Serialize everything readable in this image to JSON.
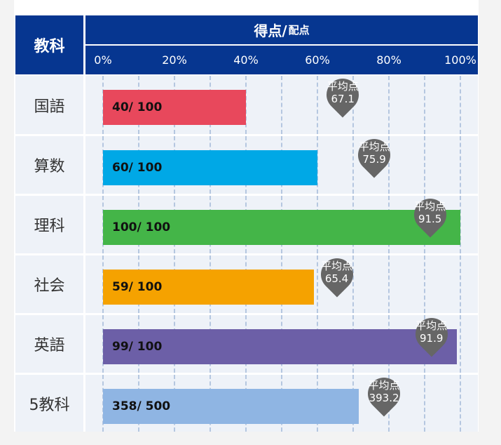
{
  "chart_data": {
    "type": "bar",
    "orientation": "horizontal",
    "header_subject": "教科",
    "header_score": "得点/",
    "header_score_small": "配点",
    "xlim": [
      0,
      100
    ],
    "x_ticks": [
      "0%",
      "20%",
      "40%",
      "60%",
      "80%",
      "100%"
    ],
    "average_label": "平均点",
    "rows": [
      {
        "subject": "国語",
        "score": 40,
        "max": 100,
        "label": "40/ 100",
        "average": "67.1",
        "color": "#e8485c"
      },
      {
        "subject": "算数",
        "score": 60,
        "max": 100,
        "label": "60/ 100",
        "average": "75.9",
        "color": "#00a8e6"
      },
      {
        "subject": "理科",
        "score": 100,
        "max": 100,
        "label": "100/ 100",
        "average": "91.5",
        "color": "#44b548"
      },
      {
        "subject": "社会",
        "score": 59,
        "max": 100,
        "label": "59/ 100",
        "average": "65.4",
        "color": "#f5a200"
      },
      {
        "subject": "英語",
        "score": 99,
        "max": 100,
        "label": "99/ 100",
        "average": "91.9",
        "color": "#6c5fa7"
      },
      {
        "subject": "5教科",
        "score": 358,
        "max": 500,
        "label": "358/ 500",
        "average": "393.2",
        "color": "#8fb5e3"
      }
    ]
  }
}
